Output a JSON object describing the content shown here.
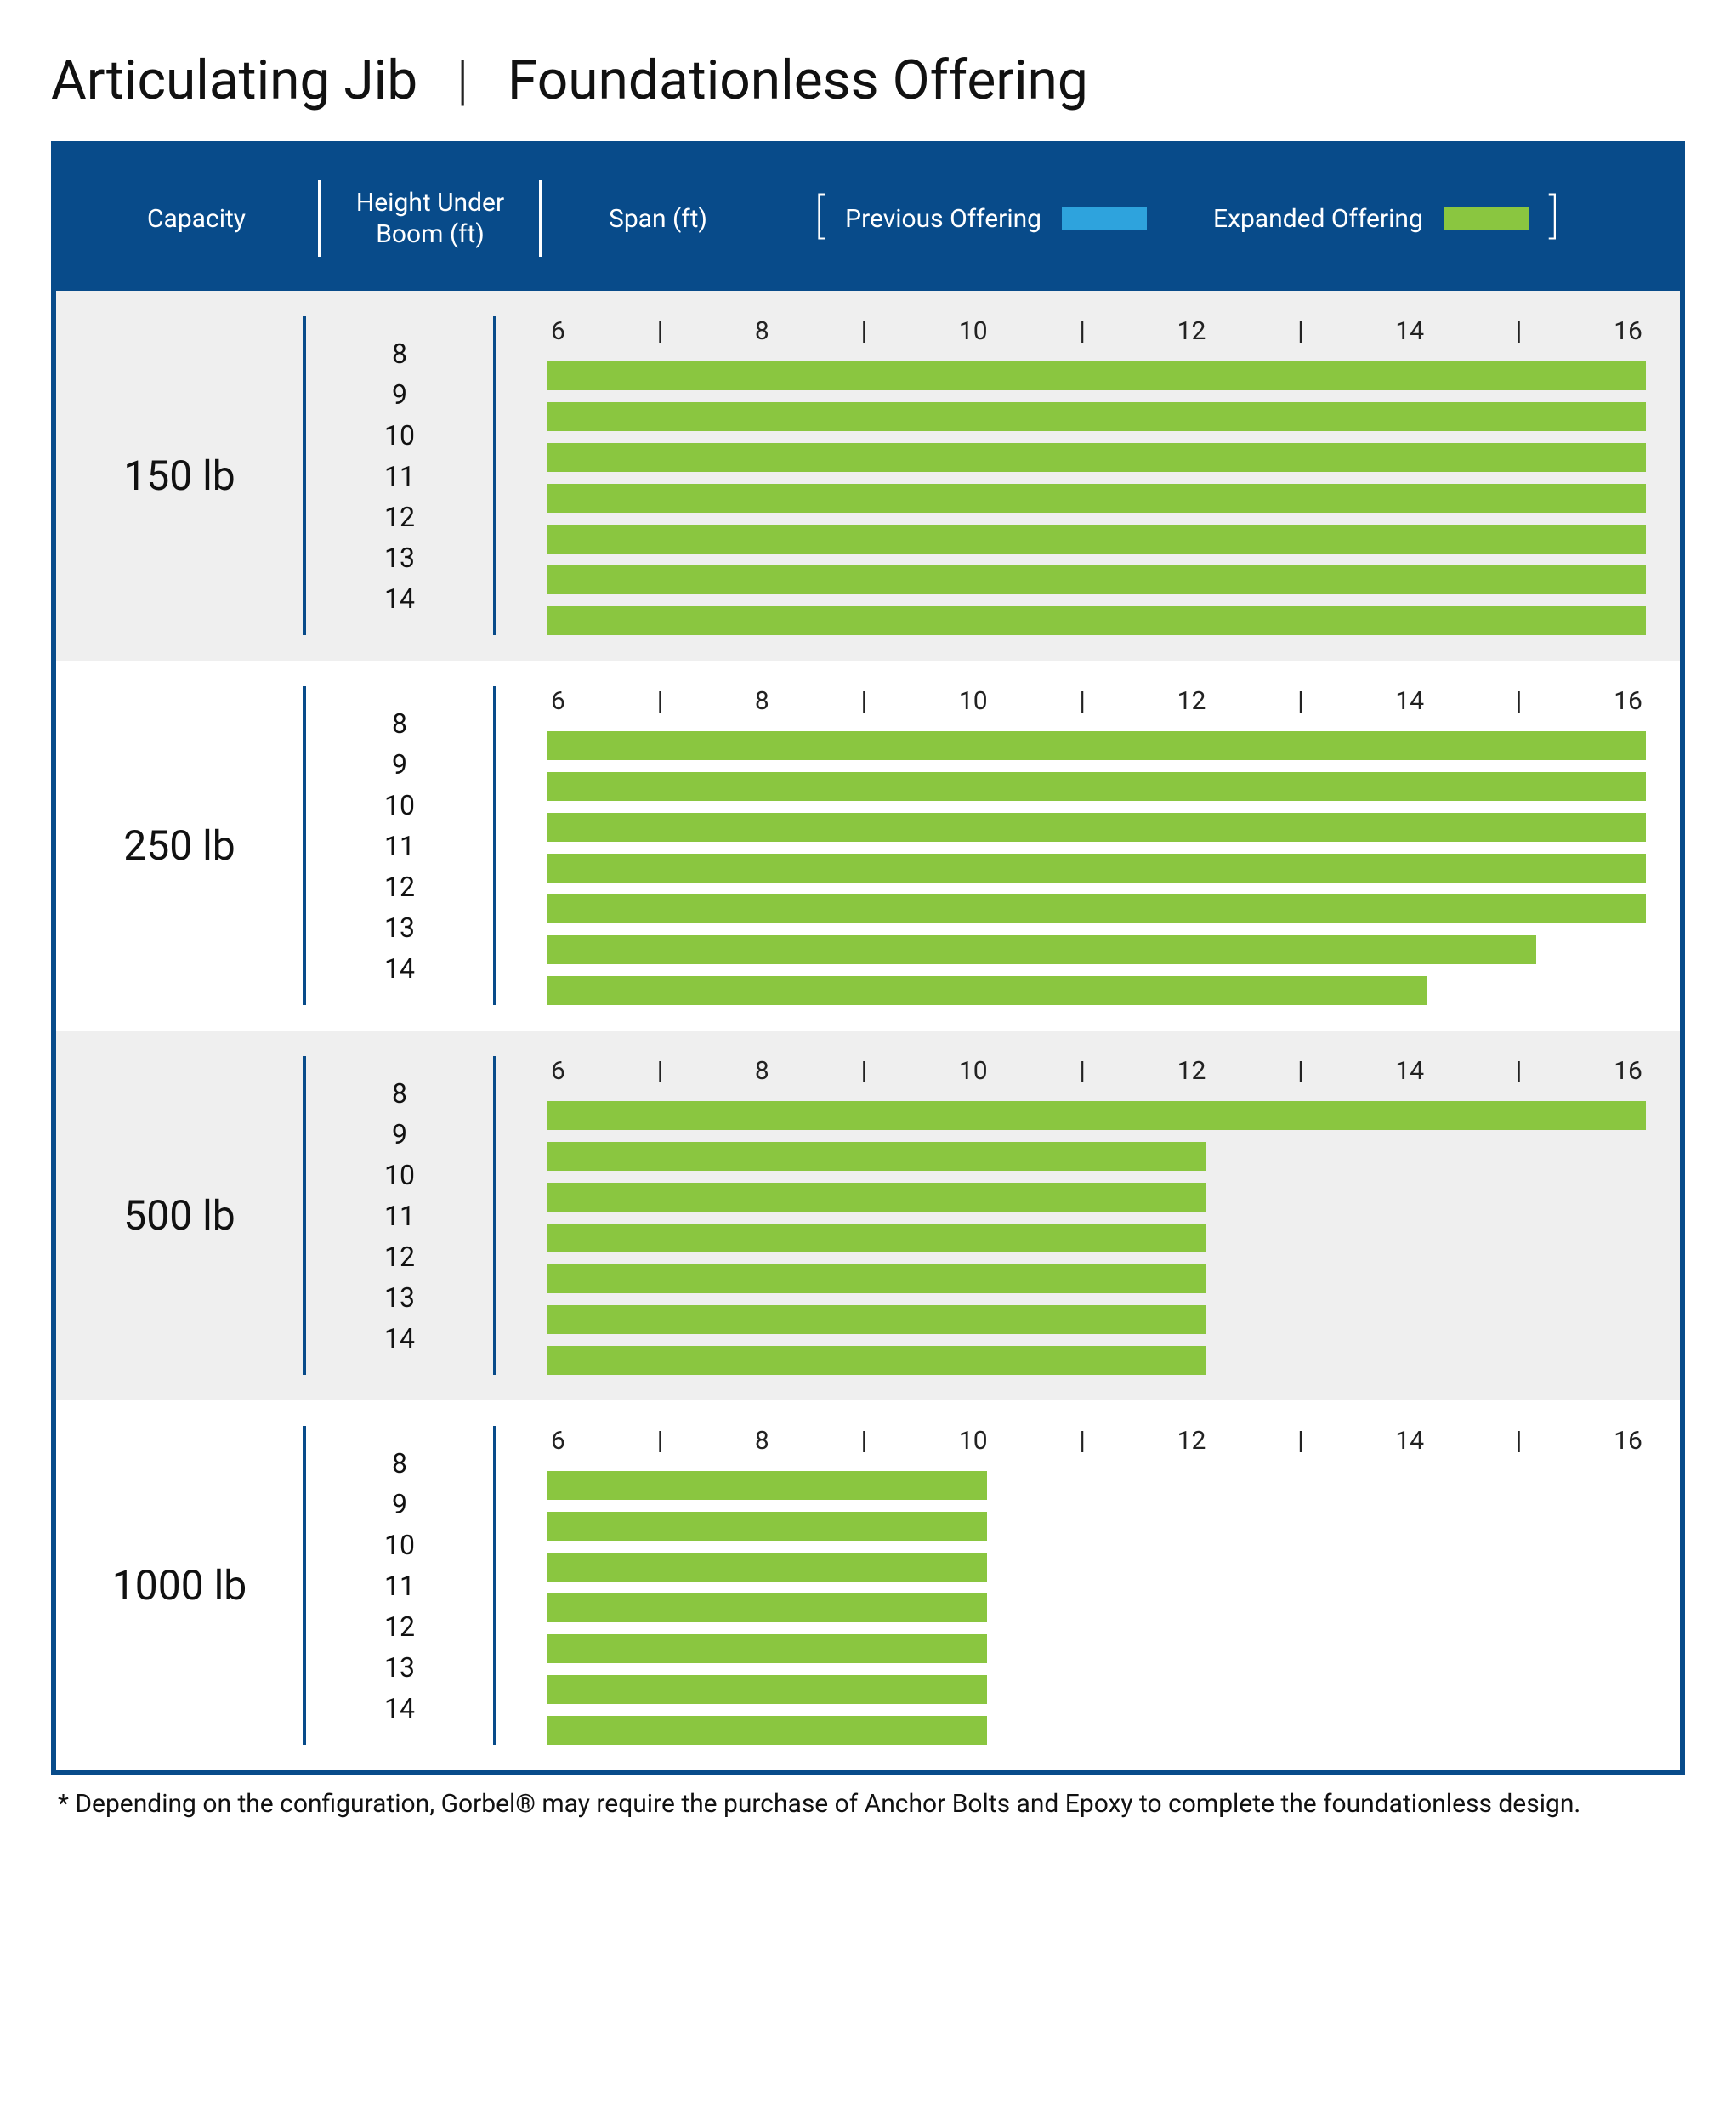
{
  "title": {
    "part1": "Articulating Jib",
    "sep": "|",
    "part2": "Foundationless Offering"
  },
  "colors": {
    "header_blue": "#084b8a",
    "swatch_blue": "#2ea3dd",
    "swatch_green": "#8ac640",
    "band_alt": "#efefef"
  },
  "header": {
    "capacity": "Capacity",
    "hub": "Height Under Boom (ft)",
    "span": "Span (ft)",
    "legend": {
      "prev": "Previous Offering",
      "exp": "Expanded Offering"
    }
  },
  "axis": {
    "min": 6,
    "max": 16,
    "step": 2,
    "labels": [
      "6",
      "|",
      "8",
      "|",
      "10",
      "|",
      "12",
      "|",
      "14",
      "|",
      "16"
    ]
  },
  "spanRange": {
    "min": 6,
    "max": 16
  },
  "hub_labels": [
    "8",
    "9",
    "10",
    "11",
    "12",
    "13",
    "14"
  ],
  "bands": [
    {
      "capacity": "150 lb",
      "alt": true,
      "bars": [
        16,
        16,
        16,
        16,
        16,
        16,
        16
      ]
    },
    {
      "capacity": "250 lb",
      "alt": false,
      "bars": [
        16,
        16,
        16,
        16,
        16,
        15,
        14
      ]
    },
    {
      "capacity": "500 lb",
      "alt": true,
      "bars": [
        16,
        12,
        12,
        12,
        12,
        12,
        12
      ]
    },
    {
      "capacity": "1000 lb",
      "alt": false,
      "bars": [
        10,
        10,
        10,
        10,
        10,
        10,
        10
      ]
    }
  ],
  "footnote": "* Depending on the configuration, Gorbel® may require the purchase of Anchor Bolts and Epoxy to complete the foundationless design."
}
